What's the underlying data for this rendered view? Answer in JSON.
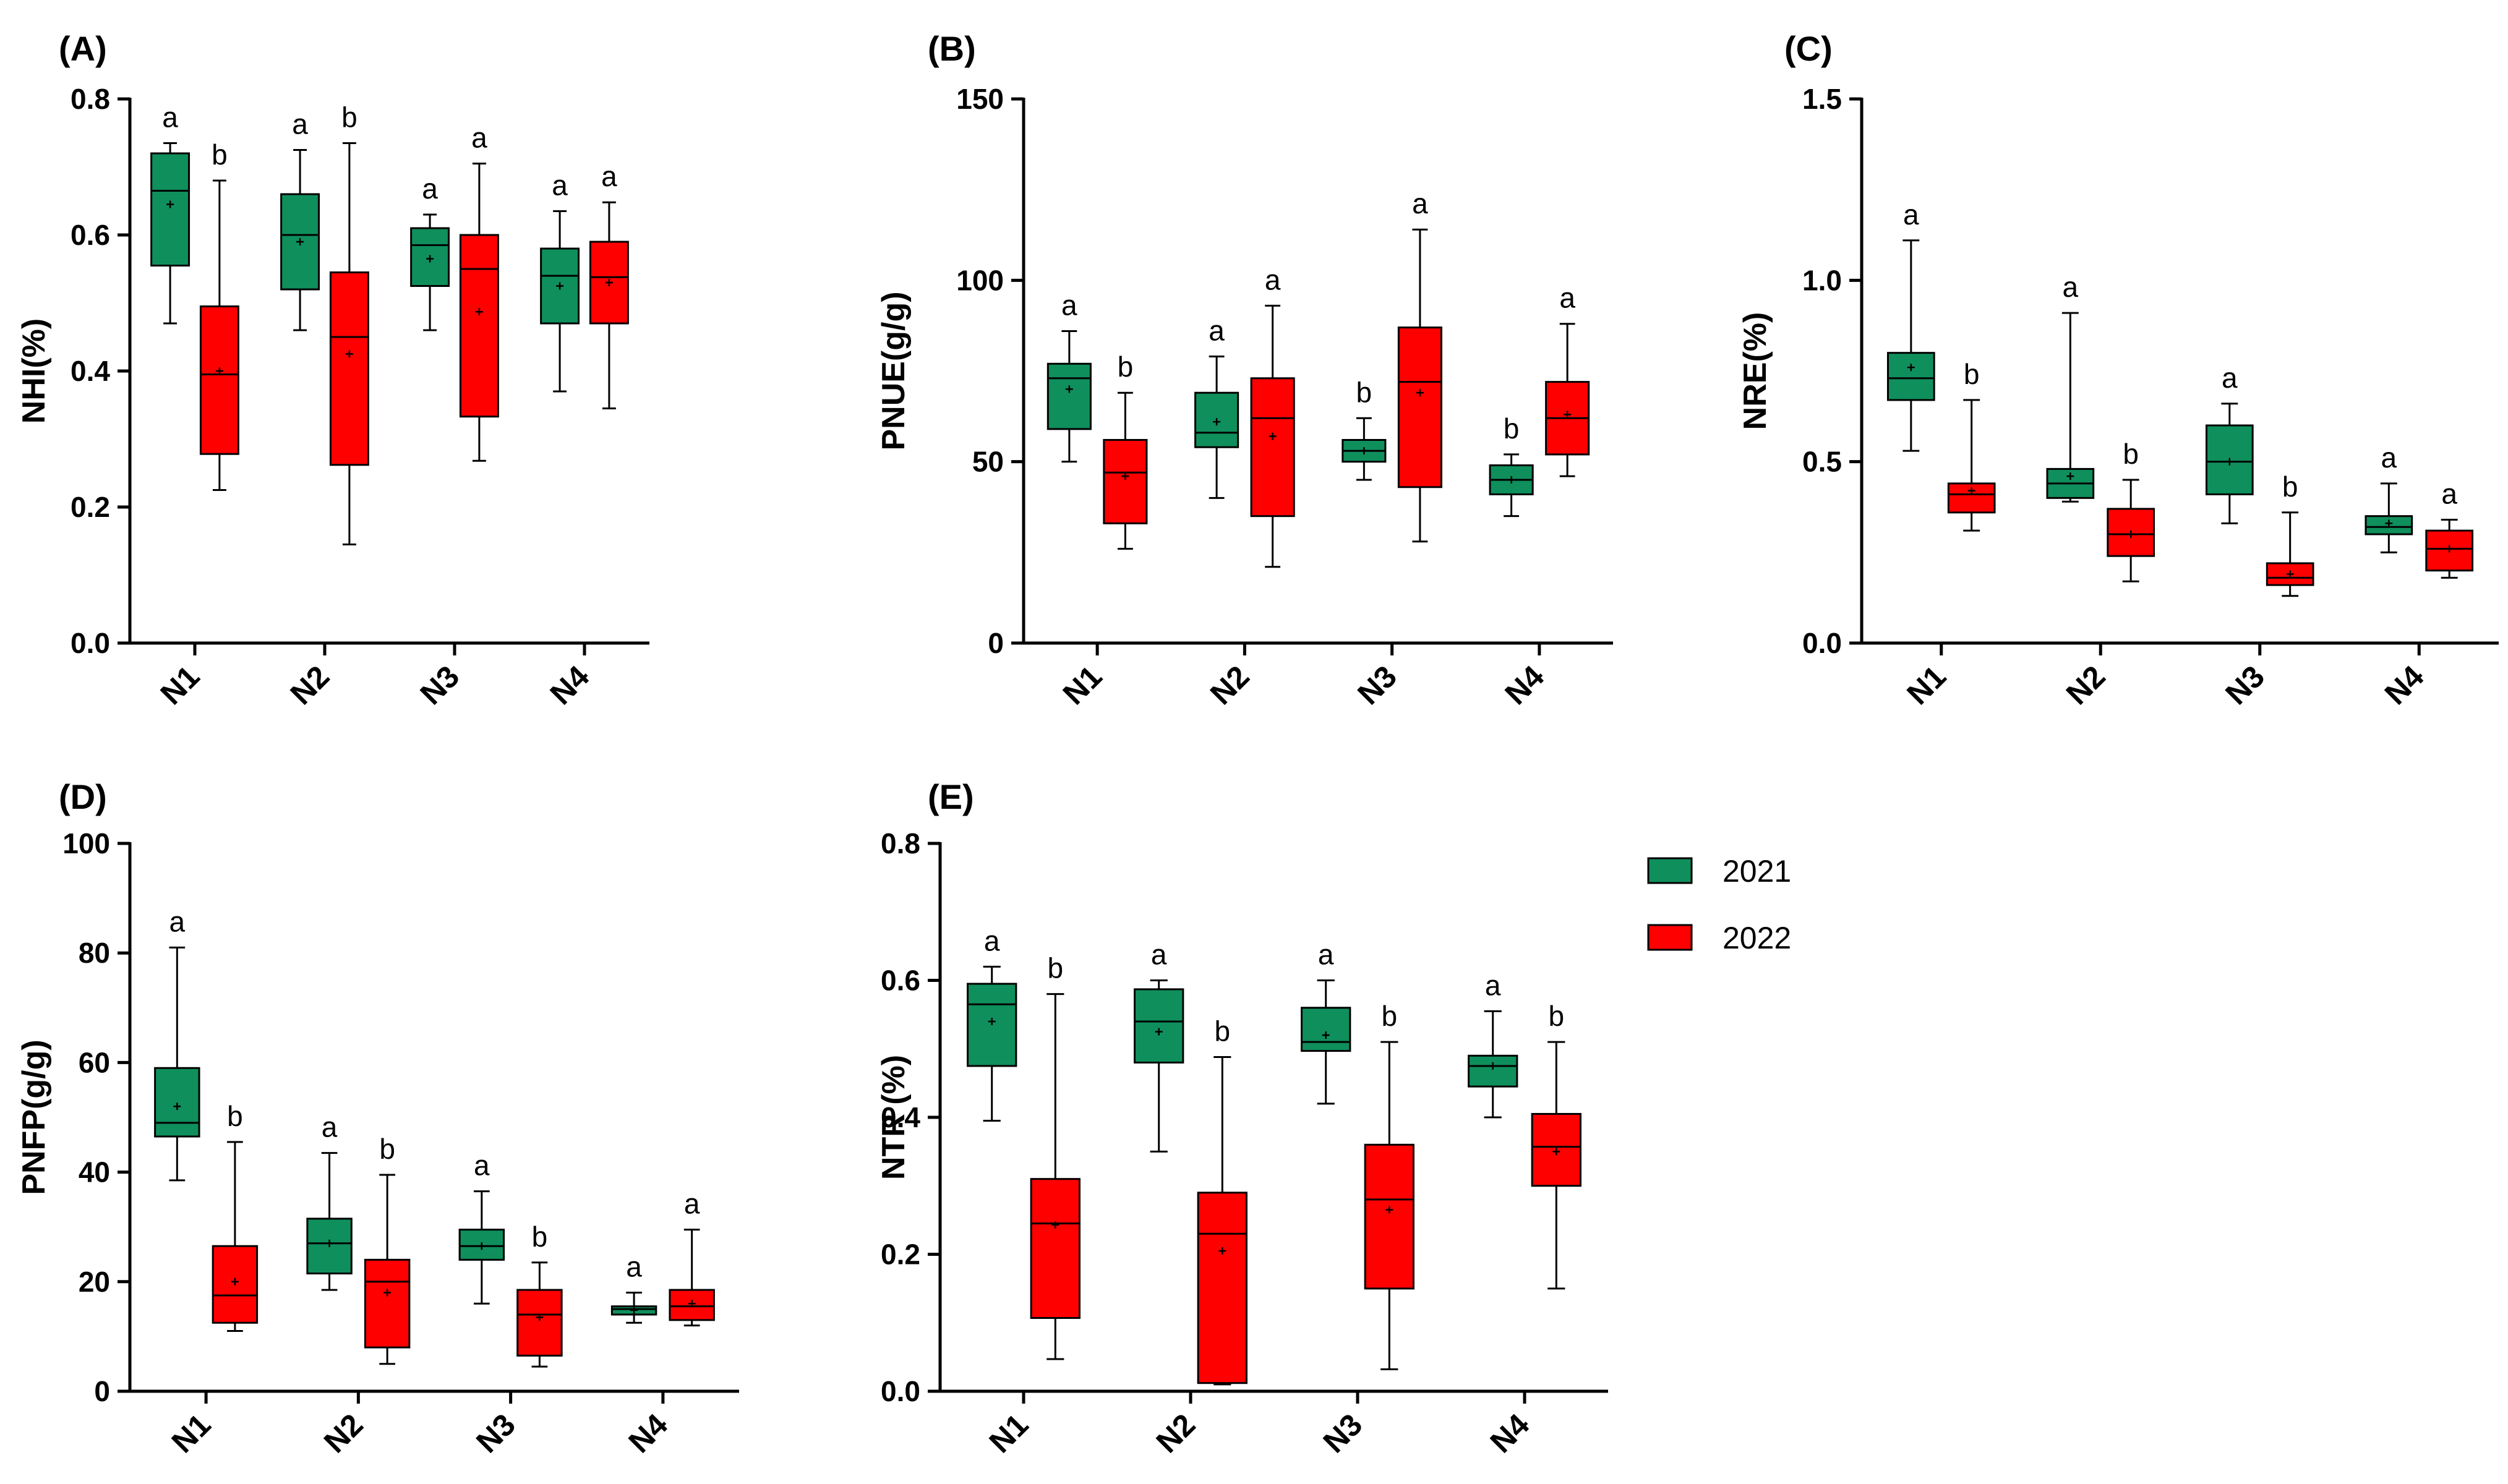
{
  "legend": {
    "items": [
      {
        "label": "2021",
        "color": "#0f8f5c"
      },
      {
        "label": "2022",
        "color": "#ff0000"
      }
    ]
  },
  "chart_data": [
    {
      "panel": "(A)",
      "type": "box",
      "ylabel": "NHI(%)",
      "ylim": [
        0,
        0.8
      ],
      "yticks": [
        "0.0",
        "0.2",
        "0.4",
        "0.6",
        "0.8"
      ],
      "categories": [
        "N1",
        "N2",
        "N3",
        "N4"
      ],
      "series": [
        {
          "name": "2021",
          "color": "#0f8f5c",
          "boxes": [
            {
              "min": 0.47,
              "q1": 0.555,
              "median": 0.665,
              "q3": 0.72,
              "max": 0.735,
              "mean": 0.645,
              "sig": "a"
            },
            {
              "min": 0.46,
              "q1": 0.52,
              "median": 0.6,
              "q3": 0.66,
              "max": 0.725,
              "mean": 0.59,
              "sig": "a"
            },
            {
              "min": 0.46,
              "q1": 0.525,
              "median": 0.585,
              "q3": 0.61,
              "max": 0.63,
              "mean": 0.565,
              "sig": "a"
            },
            {
              "min": 0.37,
              "q1": 0.47,
              "median": 0.54,
              "q3": 0.58,
              "max": 0.635,
              "mean": 0.525,
              "sig": "a"
            }
          ]
        },
        {
          "name": "2022",
          "color": "#ff0000",
          "boxes": [
            {
              "min": 0.225,
              "q1": 0.278,
              "median": 0.395,
              "q3": 0.495,
              "max": 0.68,
              "mean": 0.4,
              "sig": "b"
            },
            {
              "min": 0.145,
              "q1": 0.262,
              "median": 0.45,
              "q3": 0.545,
              "max": 0.735,
              "mean": 0.425,
              "sig": "b"
            },
            {
              "min": 0.268,
              "q1": 0.333,
              "median": 0.55,
              "q3": 0.6,
              "max": 0.705,
              "mean": 0.487,
              "sig": "a"
            },
            {
              "min": 0.345,
              "q1": 0.47,
              "median": 0.538,
              "q3": 0.59,
              "max": 0.648,
              "mean": 0.53,
              "sig": "a"
            }
          ]
        }
      ]
    },
    {
      "panel": "(B)",
      "type": "box",
      "ylabel": "PNUE(g/g)",
      "ylim": [
        0,
        150
      ],
      "yticks": [
        "0",
        "50",
        "100",
        "150"
      ],
      "categories": [
        "N1",
        "N2",
        "N3",
        "N4"
      ],
      "series": [
        {
          "name": "2021",
          "color": "#0f8f5c",
          "boxes": [
            {
              "min": 50,
              "q1": 59,
              "median": 73,
              "q3": 77,
              "max": 86,
              "mean": 70,
              "sig": "a"
            },
            {
              "min": 40,
              "q1": 54,
              "median": 58,
              "q3": 69,
              "max": 79,
              "mean": 61,
              "sig": "a"
            },
            {
              "min": 45,
              "q1": 50,
              "median": 53,
              "q3": 56,
              "max": 62,
              "mean": 53,
              "sig": "b"
            },
            {
              "min": 35,
              "q1": 41,
              "median": 45,
              "q3": 49,
              "max": 52,
              "mean": 45,
              "sig": "b"
            }
          ]
        },
        {
          "name": "2022",
          "color": "#ff0000",
          "boxes": [
            {
              "min": 26,
              "q1": 33,
              "median": 47,
              "q3": 56,
              "max": 69,
              "mean": 46,
              "sig": "b"
            },
            {
              "min": 21,
              "q1": 35,
              "median": 62,
              "q3": 73,
              "max": 93,
              "mean": 57,
              "sig": "a"
            },
            {
              "min": 28,
              "q1": 43,
              "median": 72,
              "q3": 87,
              "max": 114,
              "mean": 69,
              "sig": "a"
            },
            {
              "min": 46,
              "q1": 52,
              "median": 62,
              "q3": 72,
              "max": 88,
              "mean": 63,
              "sig": "a"
            }
          ]
        }
      ]
    },
    {
      "panel": "(C)",
      "type": "box",
      "ylabel": "NRE(%)",
      "ylim": [
        0,
        1.5
      ],
      "yticks": [
        "0.0",
        "0.5",
        "1.0",
        "1.5"
      ],
      "categories": [
        "N1",
        "N2",
        "N3",
        "N4"
      ],
      "series": [
        {
          "name": "2021",
          "color": "#0f8f5c",
          "boxes": [
            {
              "min": 0.53,
              "q1": 0.67,
              "median": 0.73,
              "q3": 0.8,
              "max": 1.11,
              "mean": 0.76,
              "sig": "a"
            },
            {
              "min": 0.39,
              "q1": 0.4,
              "median": 0.44,
              "q3": 0.48,
              "max": 0.91,
              "mean": 0.46,
              "sig": "a"
            },
            {
              "min": 0.33,
              "q1": 0.41,
              "median": 0.5,
              "q3": 0.6,
              "max": 0.66,
              "mean": 0.5,
              "sig": "a"
            },
            {
              "min": 0.25,
              "q1": 0.3,
              "median": 0.32,
              "q3": 0.35,
              "max": 0.44,
              "mean": 0.33,
              "sig": "a"
            }
          ]
        },
        {
          "name": "2022",
          "color": "#ff0000",
          "boxes": [
            {
              "min": 0.31,
              "q1": 0.36,
              "median": 0.41,
              "q3": 0.44,
              "max": 0.67,
              "mean": 0.42,
              "sig": "b"
            },
            {
              "min": 0.17,
              "q1": 0.24,
              "median": 0.3,
              "q3": 0.37,
              "max": 0.45,
              "mean": 0.3,
              "sig": "b"
            },
            {
              "min": 0.13,
              "q1": 0.16,
              "median": 0.18,
              "q3": 0.22,
              "max": 0.36,
              "mean": 0.19,
              "sig": "b"
            },
            {
              "min": 0.18,
              "q1": 0.2,
              "median": 0.26,
              "q3": 0.31,
              "max": 0.34,
              "mean": 0.26,
              "sig": "a"
            }
          ]
        }
      ]
    },
    {
      "panel": "(D)",
      "type": "box",
      "ylabel": "PNFP(g/g)",
      "ylim": [
        0,
        100
      ],
      "yticks": [
        "0",
        "20",
        "40",
        "60",
        "80",
        "100"
      ],
      "categories": [
        "N1",
        "N2",
        "N3",
        "N4"
      ],
      "series": [
        {
          "name": "2021",
          "color": "#0f8f5c",
          "boxes": [
            {
              "min": 38.5,
              "q1": 46.5,
              "median": 49,
              "q3": 59,
              "max": 81,
              "mean": 52,
              "sig": "a"
            },
            {
              "min": 18.5,
              "q1": 21.5,
              "median": 27,
              "q3": 31.5,
              "max": 43.5,
              "mean": 27,
              "sig": "a"
            },
            {
              "min": 16,
              "q1": 24,
              "median": 26.5,
              "q3": 29.5,
              "max": 36.5,
              "mean": 26.5,
              "sig": "a"
            },
            {
              "min": 12.5,
              "q1": 14,
              "median": 15,
              "q3": 15.5,
              "max": 18,
              "mean": 14.8,
              "sig": "a"
            }
          ]
        },
        {
          "name": "2022",
          "color": "#ff0000",
          "boxes": [
            {
              "min": 11,
              "q1": 12.5,
              "median": 17.5,
              "q3": 26.5,
              "max": 45.5,
              "mean": 20,
              "sig": "b"
            },
            {
              "min": 5,
              "q1": 8,
              "median": 20,
              "q3": 24,
              "max": 39.5,
              "mean": 18,
              "sig": "b"
            },
            {
              "min": 4.5,
              "q1": 6.5,
              "median": 14,
              "q3": 18.5,
              "max": 23.5,
              "mean": 13.5,
              "sig": "b"
            },
            {
              "min": 12,
              "q1": 13,
              "median": 15.5,
              "q3": 18.5,
              "max": 29.5,
              "mean": 16,
              "sig": "a"
            }
          ]
        }
      ]
    },
    {
      "panel": "(E)",
      "type": "box",
      "ylabel": "NTR (%)",
      "ylim": [
        0,
        0.8
      ],
      "yticks": [
        "0.0",
        "0.2",
        "0.4",
        "0.6",
        "0.8"
      ],
      "categories": [
        "N1",
        "N2",
        "N3",
        "N4"
      ],
      "series": [
        {
          "name": "2021",
          "color": "#0f8f5c",
          "boxes": [
            {
              "min": 0.395,
              "q1": 0.475,
              "median": 0.565,
              "q3": 0.595,
              "max": 0.62,
              "mean": 0.54,
              "sig": "a"
            },
            {
              "min": 0.35,
              "q1": 0.48,
              "median": 0.54,
              "q3": 0.587,
              "max": 0.6,
              "mean": 0.525,
              "sig": "a"
            },
            {
              "min": 0.42,
              "q1": 0.497,
              "median": 0.51,
              "q3": 0.56,
              "max": 0.6,
              "mean": 0.52,
              "sig": "a"
            },
            {
              "min": 0.4,
              "q1": 0.445,
              "median": 0.475,
              "q3": 0.49,
              "max": 0.555,
              "mean": 0.475,
              "sig": "a"
            }
          ]
        },
        {
          "name": "2022",
          "color": "#ff0000",
          "boxes": [
            {
              "min": 0.047,
              "q1": 0.107,
              "median": 0.245,
              "q3": 0.31,
              "max": 0.58,
              "mean": 0.243,
              "sig": "b"
            },
            {
              "min": 0.01,
              "q1": 0.012,
              "median": 0.23,
              "q3": 0.29,
              "max": 0.488,
              "mean": 0.205,
              "sig": "b"
            },
            {
              "min": 0.032,
              "q1": 0.15,
              "median": 0.28,
              "q3": 0.36,
              "max": 0.51,
              "mean": 0.265,
              "sig": "b"
            },
            {
              "min": 0.15,
              "q1": 0.3,
              "median": 0.357,
              "q3": 0.405,
              "max": 0.51,
              "mean": 0.35,
              "sig": "b"
            }
          ]
        }
      ]
    }
  ]
}
